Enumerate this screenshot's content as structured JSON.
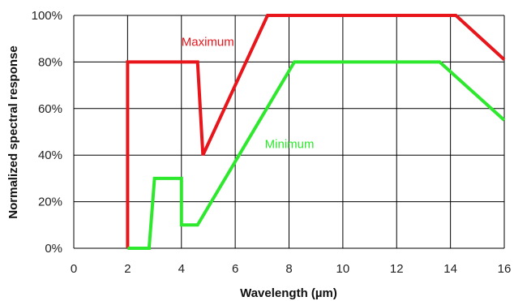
{
  "chart_data": {
    "type": "line",
    "title": "",
    "xlabel": "Wavelength (µm)",
    "ylabel": "Normalized spectral response",
    "xlim": [
      0,
      16
    ],
    "ylim": [
      0,
      100
    ],
    "x_ticks": [
      0,
      2,
      4,
      6,
      8,
      10,
      12,
      14,
      16
    ],
    "x_tick_labels": [
      "0",
      "2",
      "4",
      "6",
      "8",
      "10",
      "12",
      "14",
      "16"
    ],
    "y_ticks": [
      0,
      20,
      40,
      60,
      80,
      100
    ],
    "y_tick_labels": [
      "0%",
      "20%",
      "40%",
      "60%",
      "80%",
      "100%"
    ],
    "grid": true,
    "legend": "none",
    "series": [
      {
        "name": "Maximum",
        "color": "#e8151b",
        "points": [
          [
            2,
            0
          ],
          [
            2,
            80
          ],
          [
            4.6,
            80
          ],
          [
            4.8,
            40
          ],
          [
            7.2,
            100
          ],
          [
            14.2,
            100
          ],
          [
            16,
            81
          ]
        ],
        "label_pos": [
          4.0,
          87
        ]
      },
      {
        "name": "Minimum",
        "color": "#2ee82e",
        "points": [
          [
            2,
            0
          ],
          [
            2.8,
            0
          ],
          [
            3.0,
            30
          ],
          [
            4.0,
            30
          ],
          [
            4.0,
            10
          ],
          [
            4.6,
            10
          ],
          [
            8.2,
            80
          ],
          [
            13.6,
            80
          ],
          [
            16,
            55
          ]
        ],
        "label_pos": [
          7.1,
          43
        ]
      }
    ]
  }
}
